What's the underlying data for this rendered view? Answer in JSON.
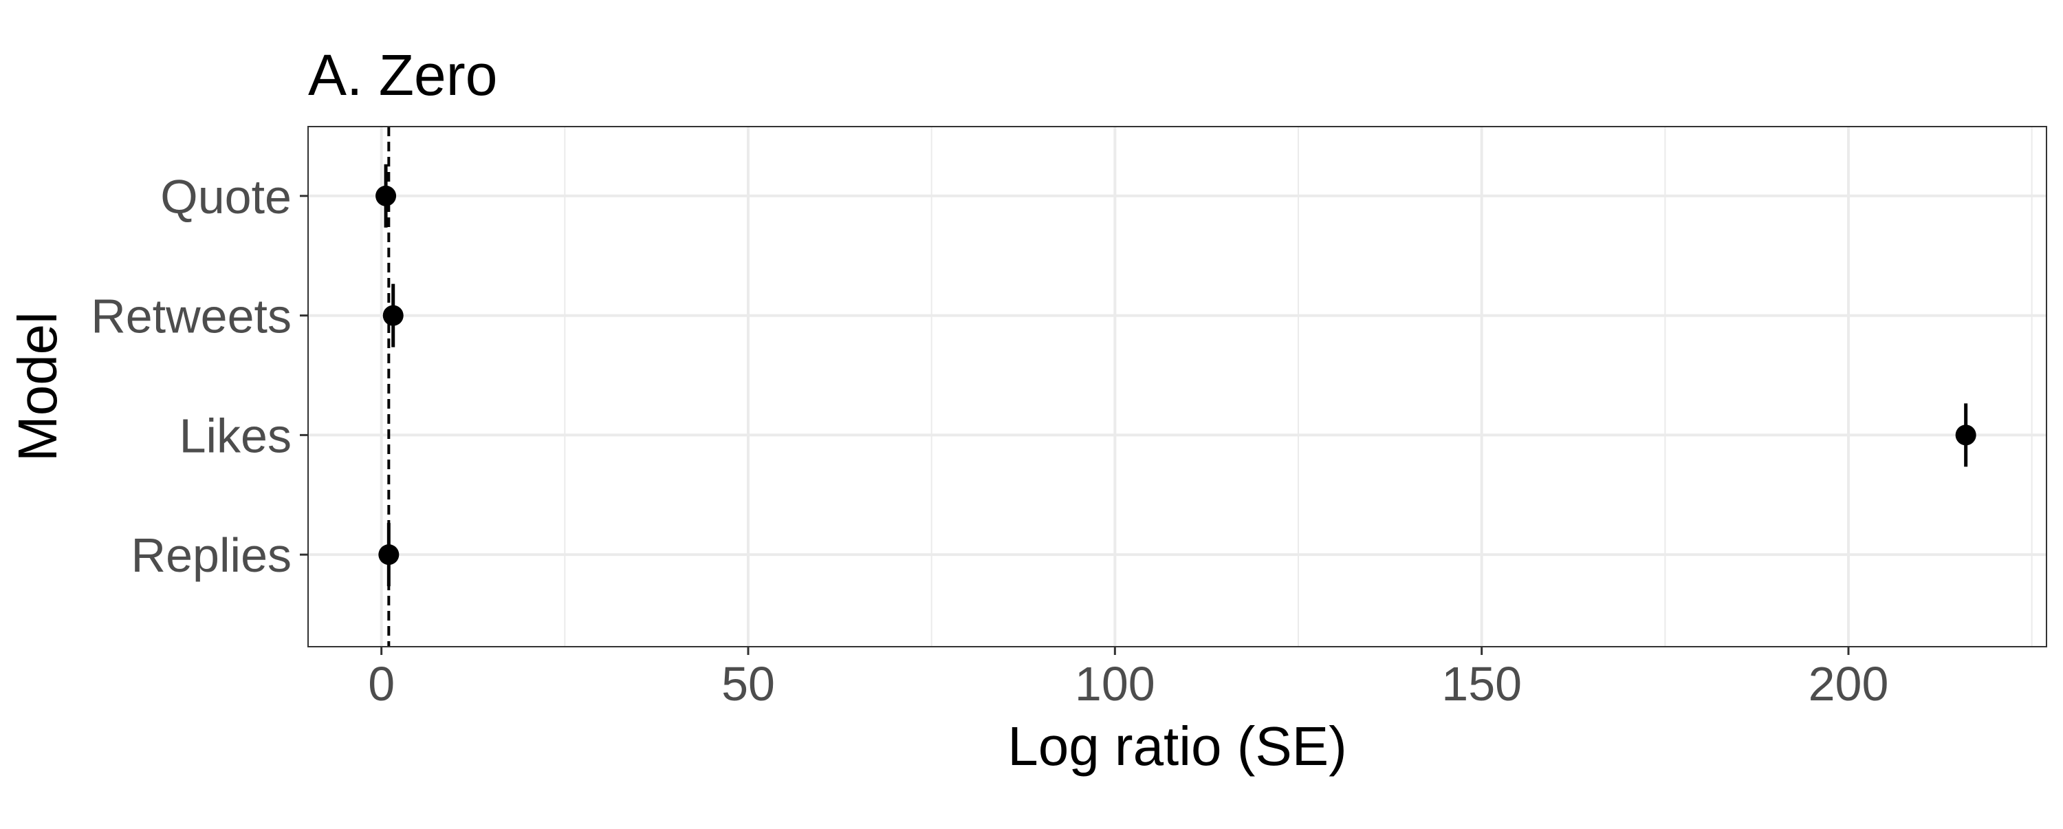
{
  "chart_data": {
    "type": "dot-errorbar",
    "title": "A. Zero",
    "xlabel": "Log ratio (SE)",
    "ylabel": "Model",
    "xlim": [
      -10,
      227
    ],
    "x_ticks": [
      0,
      50,
      100,
      150,
      200
    ],
    "x_tick_labels": [
      "0",
      "50",
      "100",
      "150",
      "200"
    ],
    "reference_line": {
      "x": 1,
      "style": "dashed"
    },
    "categories": [
      "Quote",
      "Retweets",
      "Likes",
      "Replies"
    ],
    "points": [
      {
        "label": "Quote",
        "value": 0.6,
        "lower": 0.3,
        "upper": 0.9
      },
      {
        "label": "Retweets",
        "value": 1.6,
        "lower": 1.3,
        "upper": 1.9
      },
      {
        "label": "Likes",
        "value": 216.0,
        "lower": 215.8,
        "upper": 216.2
      },
      {
        "label": "Replies",
        "value": 1.0,
        "lower": 0.8,
        "upper": 1.2
      }
    ],
    "grid": true,
    "legend": "none",
    "colors": {
      "point": "#000000",
      "grid": "#ebebeb",
      "panel_border": "#333333",
      "tick_text": "#4d4d4d"
    }
  }
}
